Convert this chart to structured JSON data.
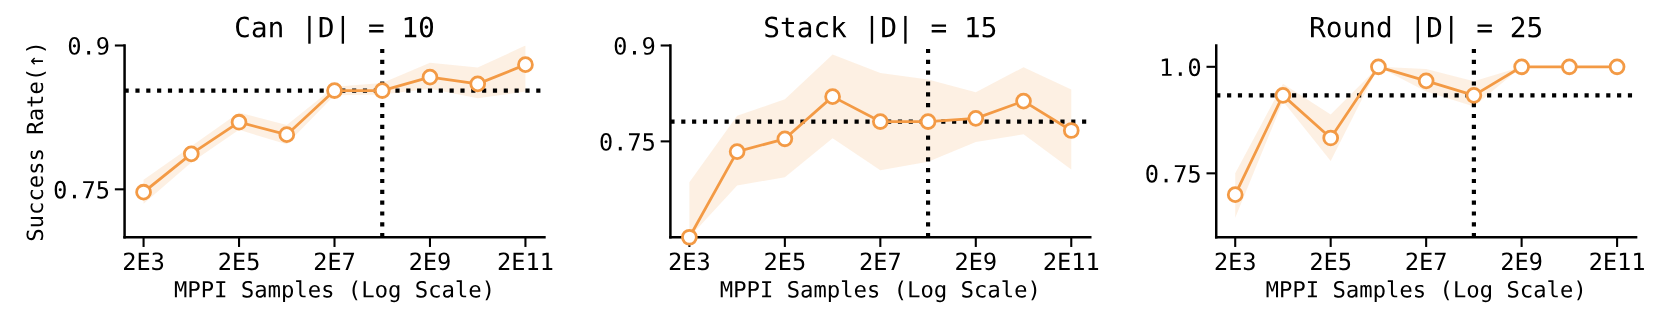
{
  "chart_data": [
    {
      "type": "line",
      "title": "Can |D| = 10",
      "xlabel": "MPPI Samples (Log Scale)",
      "ylabel": "Success Rate(↑)",
      "log": "x",
      "marker": "circle",
      "grid": false,
      "xlim": [
        800,
        500000000000
      ],
      "xticks": [
        {
          "value": 2000,
          "label": "2E3"
        },
        {
          "value": 200000,
          "label": "2E5"
        },
        {
          "value": 20000000,
          "label": "2E7"
        },
        {
          "value": 2000000000,
          "label": "2E9"
        },
        {
          "value": 200000000000,
          "label": "2E11"
        }
      ],
      "ylim": [
        0.7,
        0.9
      ],
      "yticks": [
        {
          "value": 0.75,
          "label": "0.75"
        },
        {
          "value": 0.9,
          "label": "0.9"
        }
      ],
      "x": [
        2000,
        20000,
        200000,
        2000000,
        20000000,
        200000000,
        2000000000,
        20000000000,
        200000000000
      ],
      "series": [
        {
          "color": "#f39a45",
          "values": [
            0.747,
            0.787,
            0.82,
            0.807,
            0.853,
            0.853,
            0.867,
            0.86,
            0.88
          ],
          "lower": [
            0.735,
            0.778,
            0.812,
            0.797,
            0.848,
            0.849,
            0.855,
            0.845,
            0.852
          ],
          "upper": [
            0.76,
            0.795,
            0.83,
            0.817,
            0.857,
            0.861,
            0.882,
            0.877,
            0.9
          ]
        }
      ],
      "ref_lines": [
        {
          "axis": "y",
          "value": 0.853,
          "color": "#000000",
          "line_style": "dotted"
        },
        {
          "axis": "x",
          "value": 200000000,
          "color": "#000000",
          "line_style": "dotted"
        }
      ]
    },
    {
      "type": "line",
      "title": "Stack |D| = 15",
      "xlabel": "MPPI Samples (Log Scale)",
      "log": "x",
      "marker": "circle",
      "grid": false,
      "xlim": [
        800,
        500000000000
      ],
      "xticks": [
        {
          "value": 2000,
          "label": "2E3"
        },
        {
          "value": 200000,
          "label": "2E5"
        },
        {
          "value": 20000000,
          "label": "2E7"
        },
        {
          "value": 2000000000,
          "label": "2E9"
        },
        {
          "value": 200000000000,
          "label": "2E11"
        }
      ],
      "ylim": [
        0.6,
        0.9
      ],
      "yticks": [
        {
          "value": 0.75,
          "label": "0.75"
        },
        {
          "value": 0.9,
          "label": "0.9"
        }
      ],
      "x": [
        2000,
        20000,
        200000,
        2000000,
        20000000,
        200000000,
        2000000000,
        20000000000,
        200000000000
      ],
      "series": [
        {
          "color": "#f39a45",
          "values": [
            0.6,
            0.734,
            0.754,
            0.82,
            0.781,
            0.781,
            0.786,
            0.813,
            0.767
          ],
          "lower": [
            0.6,
            0.681,
            0.694,
            0.755,
            0.705,
            0.718,
            0.749,
            0.761,
            0.706
          ],
          "upper": [
            0.686,
            0.79,
            0.816,
            0.886,
            0.857,
            0.847,
            0.827,
            0.866,
            0.831
          ]
        }
      ],
      "ref_lines": [
        {
          "axis": "y",
          "value": 0.781,
          "color": "#000000",
          "line_style": "dotted"
        },
        {
          "axis": "x",
          "value": 200000000,
          "color": "#000000",
          "line_style": "dotted"
        }
      ]
    },
    {
      "type": "line",
      "title": "Round |D| = 25",
      "xlabel": "MPPI Samples (Log Scale)",
      "log": "x",
      "marker": "circle",
      "grid": false,
      "xlim": [
        800,
        500000000000
      ],
      "xticks": [
        {
          "value": 2000,
          "label": "2E3"
        },
        {
          "value": 200000,
          "label": "2E5"
        },
        {
          "value": 20000000,
          "label": "2E7"
        },
        {
          "value": 2000000000,
          "label": "2E9"
        },
        {
          "value": 200000000000,
          "label": "2E11"
        }
      ],
      "ylim": [
        0.6,
        1.05
      ],
      "yticks": [
        {
          "value": 0.75,
          "label": "0.75"
        },
        {
          "value": 1.0,
          "label": "1.0"
        }
      ],
      "x": [
        2000,
        20000,
        200000,
        2000000,
        20000000,
        200000000,
        2000000000,
        20000000000,
        200000000000
      ],
      "series": [
        {
          "color": "#f39a45",
          "values": [
            0.7,
            0.933,
            0.833,
            1.0,
            0.967,
            0.933,
            1.0,
            1.0,
            1.0
          ],
          "lower": [
            0.646,
            0.919,
            0.779,
            1.0,
            0.942,
            0.907,
            1.0,
            1.0,
            1.0
          ],
          "upper": [
            0.75,
            0.96,
            0.888,
            1.0,
            0.995,
            0.966,
            1.0,
            1.0,
            1.0
          ]
        }
      ],
      "ref_lines": [
        {
          "axis": "y",
          "value": 0.933,
          "color": "#000000",
          "line_style": "dotted"
        },
        {
          "axis": "x",
          "value": 200000000,
          "color": "#000000",
          "line_style": "dotted"
        }
      ]
    }
  ]
}
